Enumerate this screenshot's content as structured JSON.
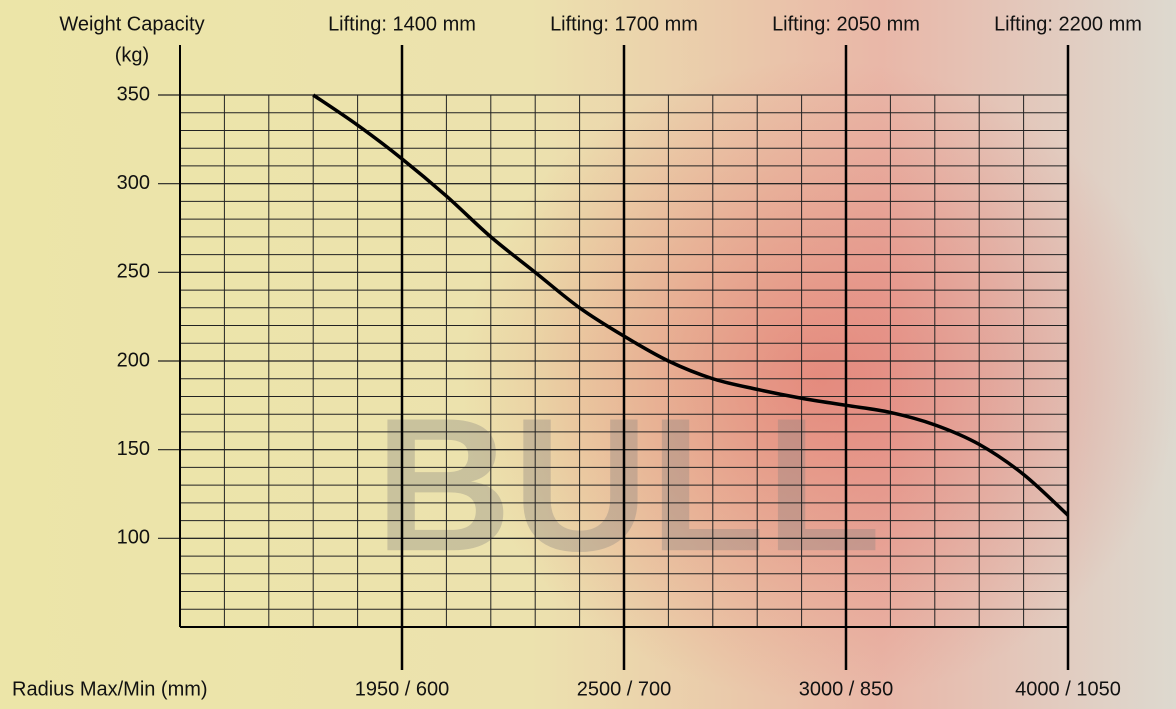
{
  "chart_data": {
    "type": "line",
    "ylabel": "Weight Capacity",
    "ylabel_unit": "(kg)",
    "xlabel": "Radius Max/Min (mm)",
    "watermark": "BULL",
    "categories": [
      null,
      null,
      null,
      null,
      null,
      "1950 / 600",
      null,
      null,
      null,
      null,
      "2500 / 700",
      null,
      null,
      null,
      null,
      "3000 / 850",
      null,
      null,
      null,
      null,
      "4000 / 1050"
    ],
    "lifting": [
      null,
      null,
      null,
      null,
      null,
      "Lifting: 1400 mm",
      null,
      null,
      null,
      null,
      "Lifting: 1700 mm",
      null,
      null,
      null,
      null,
      "Lifting: 2050 mm",
      null,
      null,
      null,
      null,
      "Lifting: 2200 mm"
    ],
    "values": [
      null,
      null,
      null,
      350,
      333,
      314,
      293,
      270,
      250,
      230,
      214,
      200,
      190,
      184,
      179,
      175,
      171,
      164,
      153,
      136,
      113
    ],
    "color": "#000000",
    "ylim": [
      50,
      350
    ],
    "yticks": [
      100,
      150,
      200,
      250,
      300,
      350
    ],
    "grid": true
  }
}
